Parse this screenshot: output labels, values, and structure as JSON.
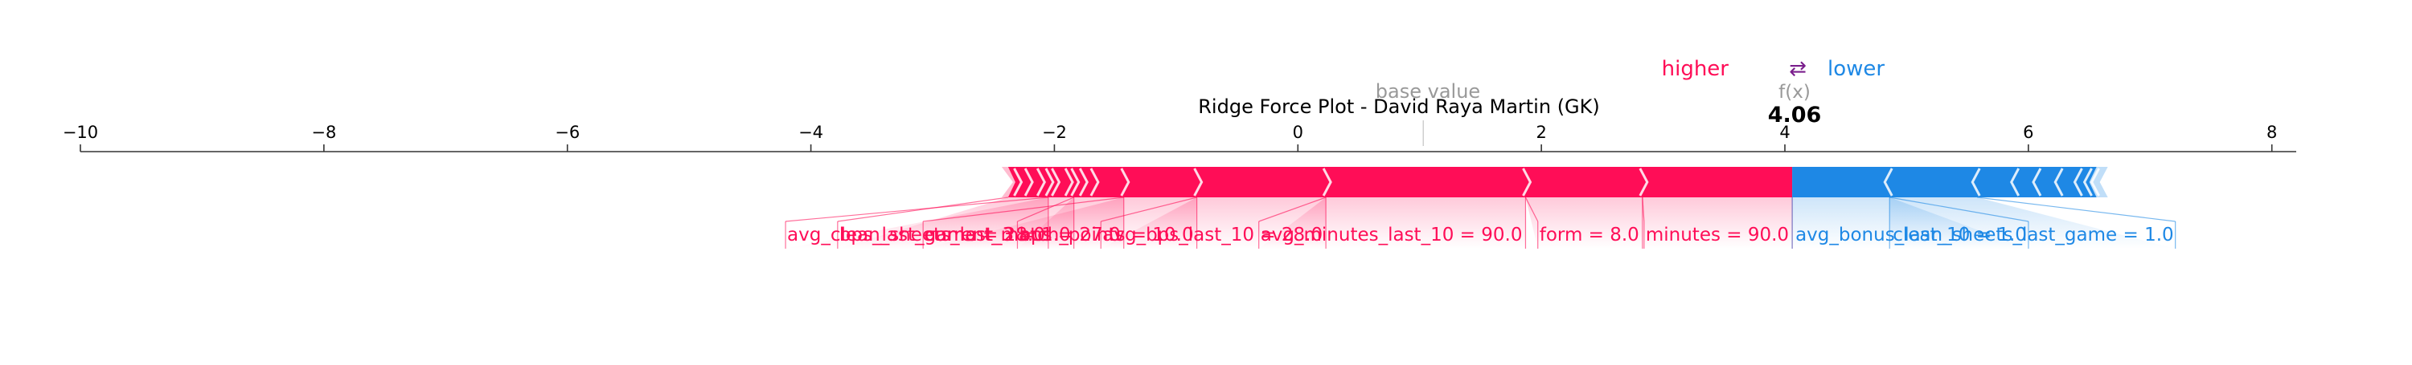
{
  "chart_data": {
    "type": "force",
    "title": "Ridge Force Plot - David Raya Martin (GK)",
    "xlim": [
      -10,
      8.2
    ],
    "ticks": [
      -10,
      -8,
      -6,
      -4,
      -2,
      0,
      2,
      4,
      6,
      8
    ],
    "tick_labels": [
      "−10",
      "−8",
      "−6",
      "−4",
      "−2",
      "0",
      "2",
      "4",
      "6",
      "8"
    ],
    "base_value": 1.03,
    "base_value_label": "base value",
    "output_value": 4.06,
    "output_value_text": "4.06",
    "output_label": "f(x)",
    "legend": {
      "higher": "higher",
      "arrow": "⇄",
      "lower": "lower"
    },
    "colors": {
      "positive": "#ff0d57",
      "negative": "#1e88e5"
    },
    "positive_features": [
      {
        "label": "minutes = 90.0",
        "start": 2.83,
        "end": 4.06
      },
      {
        "label": "form = 8.0",
        "start": 1.87,
        "end": 2.83
      },
      {
        "label": "avg_minutes_last_10 = 90.0",
        "start": 0.23,
        "end": 1.87
      },
      {
        "label": "avg_bps_last_10 = 28.0",
        "start": -0.83,
        "end": 0.23
      },
      {
        "label": "current_match_points = 10.0",
        "start": -1.43,
        "end": -0.83
      },
      {
        "label": "bps = 27.0",
        "start": -1.84,
        "end": -1.43
      },
      {
        "label": "avg_clean_sheets_last_3 = 1.0",
        "start": -2.05,
        "end": -1.84
      },
      {
        "label": "bps_last_game = 28.0",
        "start": -2.38,
        "end": -2.05
      }
    ],
    "positive_minor_edges": [
      -2.31,
      -2.22,
      -2.12,
      -2.0,
      -1.89,
      -1.77,
      -1.68
    ],
    "negative_features": [
      {
        "label": "avg_bonus_last_10 = 1.0",
        "start": 4.06,
        "end": 4.86
      },
      {
        "label": "clean_sheets_last_game = 1.0",
        "start": 4.86,
        "end": 5.58
      }
    ],
    "negative_minor_edges": [
      5.9,
      6.08,
      6.26,
      6.42,
      6.5,
      6.56
    ]
  }
}
